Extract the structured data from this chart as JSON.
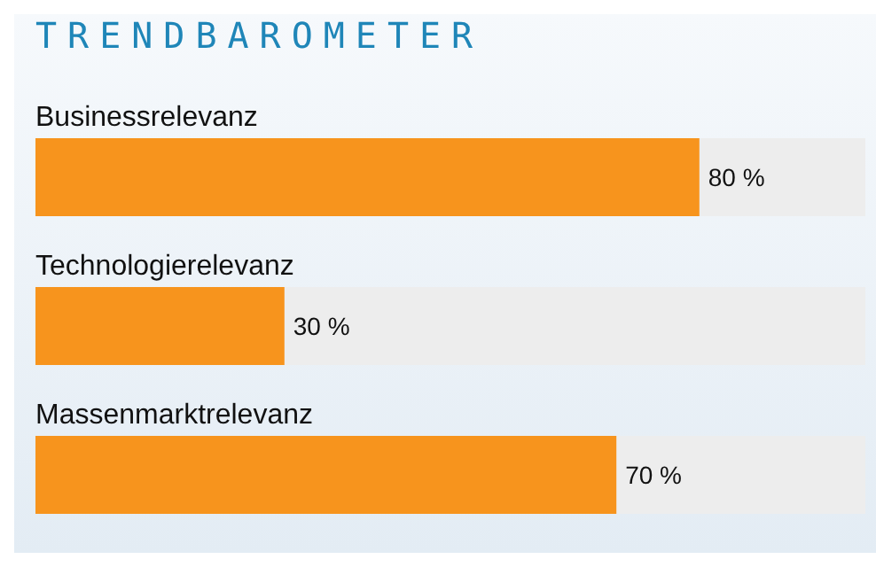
{
  "chart_data": {
    "type": "bar",
    "orientation": "horizontal",
    "title": "TRENDBAROMETER",
    "categories": [
      "Businessrelevanz",
      "Technologierelevanz",
      "Massenmarktrelevanz"
    ],
    "values": [
      80,
      30,
      70
    ],
    "color": "#f7941d",
    "value_labels": [
      "80 %",
      "30 %",
      "70 %"
    ],
    "xlim": [
      0,
      100
    ],
    "grid": false,
    "legend": false
  }
}
